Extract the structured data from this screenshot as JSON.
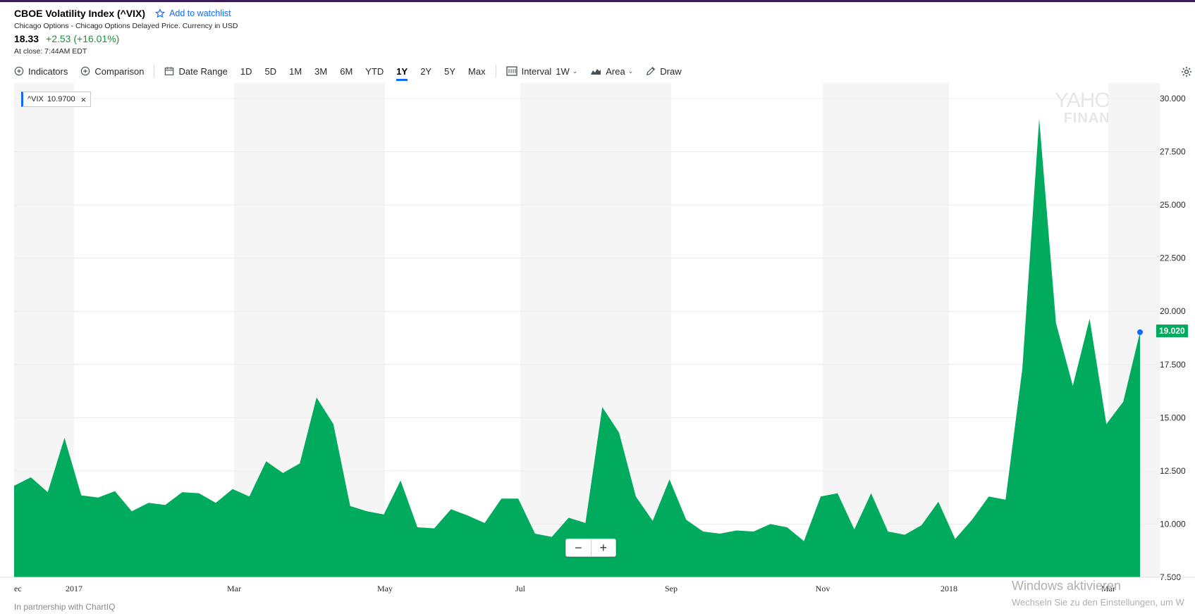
{
  "header": {
    "title": "CBOE Volatility Index (^VIX)",
    "watchlist_label": "Add to watchlist",
    "subtitle": "Chicago Options - Chicago Options Delayed Price. Currency in USD",
    "price": "18.33",
    "change": "+2.53 (+16.01%)",
    "close_time": "At close: 7:44AM EDT",
    "change_color": "#1e8e3e"
  },
  "toolbar": {
    "indicators": "Indicators",
    "comparison": "Comparison",
    "date_range": "Date Range",
    "ranges": [
      "1D",
      "5D",
      "1M",
      "3M",
      "6M",
      "YTD",
      "1Y",
      "2Y",
      "5Y",
      "Max"
    ],
    "active_range": "1Y",
    "interval_label": "Interval",
    "interval_value": "1W",
    "chart_type": "Area",
    "draw": "Draw"
  },
  "legend": {
    "symbol": "^VIX",
    "value": "10.9700"
  },
  "last_price_badge": "19.020",
  "watermark": {
    "line1": "YAHOO!",
    "line2": "FINANCE"
  },
  "footer": "In partnership with ChartIQ",
  "windows_notice": {
    "line1": "Windows aktivieren",
    "line2": "Wechseln Sie zu den Einstellungen, um W"
  },
  "colors": {
    "area": "#00ab5e",
    "accent": "#0f69ff",
    "band": "#f5f5f5"
  },
  "chart_data": {
    "type": "area",
    "series": [
      {
        "name": "^VIX",
        "values": [
          11.8,
          12.2,
          11.5,
          14.05,
          11.35,
          11.25,
          11.55,
          10.6,
          11.0,
          10.9,
          11.5,
          11.45,
          11.0,
          11.65,
          11.3,
          12.95,
          12.4,
          12.85,
          15.95,
          14.7,
          10.85,
          10.6,
          10.45,
          12.05,
          9.85,
          9.8,
          10.7,
          10.4,
          10.05,
          11.2,
          11.2,
          9.55,
          9.4,
          10.3,
          10.05,
          15.5,
          14.3,
          11.3,
          10.15,
          12.1,
          10.2,
          9.65,
          9.55,
          9.7,
          9.65,
          10.0,
          9.85,
          9.2,
          11.3,
          11.45,
          9.75,
          11.45,
          9.65,
          9.5,
          9.95,
          11.05,
          9.3,
          10.2,
          11.3,
          11.15,
          17.3,
          29.05,
          19.45,
          16.5,
          19.65,
          14.7,
          15.75,
          19.02
        ]
      }
    ],
    "x_tick_labels": [
      "ec",
      "2017",
      "Mar",
      "May",
      "Jul",
      "Sep",
      "Nov",
      "2018",
      "Mar"
    ],
    "y_ticks": [
      "30.000",
      "27.500",
      "25.000",
      "22.500",
      "20.000",
      "17.500",
      "15.000",
      "12.500",
      "10.000",
      "7.500"
    ],
    "ylim": [
      7.5,
      30.0
    ],
    "grid": true,
    "legend_position": "top-left"
  }
}
